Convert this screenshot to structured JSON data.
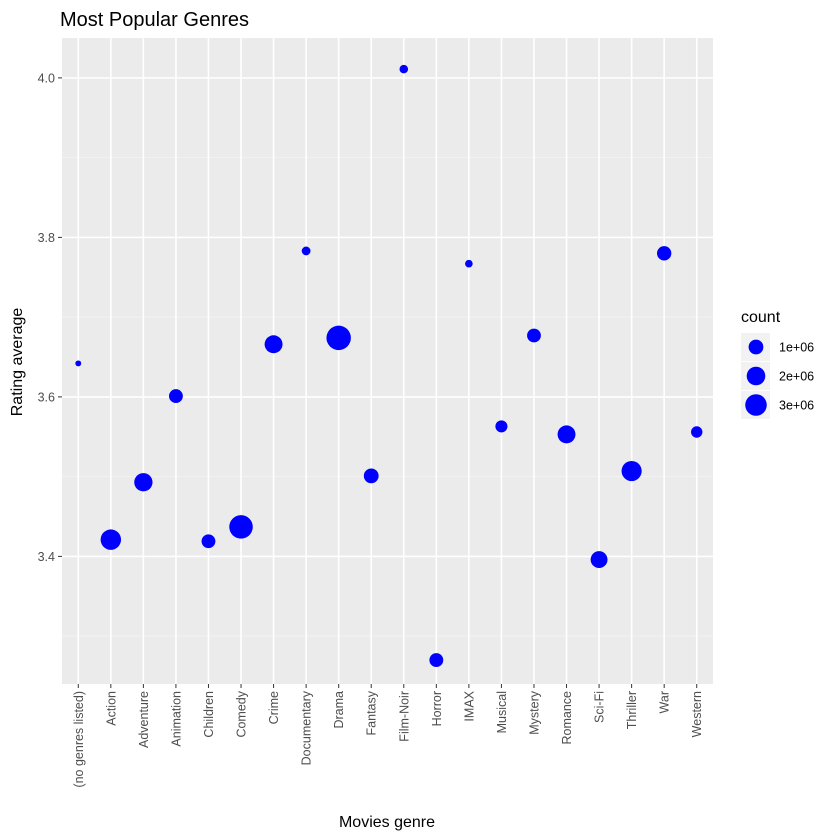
{
  "chart_data": {
    "type": "scatter",
    "title": "Most Popular Genres",
    "xlabel": "Movies genre",
    "ylabel": "Rating average",
    "categories": [
      "(no genres listed)",
      "Action",
      "Adventure",
      "Animation",
      "Children",
      "Comedy",
      "Crime",
      "Documentary",
      "Drama",
      "Fantasy",
      "Film-Noir",
      "Horror",
      "IMAX",
      "Musical",
      "Mystery",
      "Romance",
      "Sci-Fi",
      "Thriller",
      "War",
      "Western"
    ],
    "values": [
      3.642,
      3.421,
      3.493,
      3.601,
      3.419,
      3.437,
      3.666,
      3.783,
      3.674,
      3.501,
      4.011,
      3.27,
      3.767,
      3.563,
      3.677,
      3.553,
      3.396,
      3.507,
      3.78,
      3.556
    ],
    "counts": [
      1000,
      2600000,
      1900000,
      800000,
      800000,
      3800000,
      1800000,
      120000,
      4200000,
      1000000,
      100000,
      800000,
      50000,
      500000,
      800000,
      1800000,
      1500000,
      2500000,
      900000,
      400000
    ],
    "ylim": [
      3.24,
      4.05
    ],
    "yticks": [
      3.4,
      3.6,
      3.8,
      4.0
    ],
    "yticklabels": [
      "3.4",
      "3.6",
      "3.8",
      "4.0"
    ],
    "grid": true,
    "point_color": "#0000ff",
    "legend": {
      "title": "count",
      "position": "right",
      "entries": [
        {
          "label": "1e+06",
          "value": 1000000
        },
        {
          "label": "2e+06",
          "value": 2000000
        },
        {
          "label": "3e+06",
          "value": 3000000
        }
      ]
    }
  }
}
